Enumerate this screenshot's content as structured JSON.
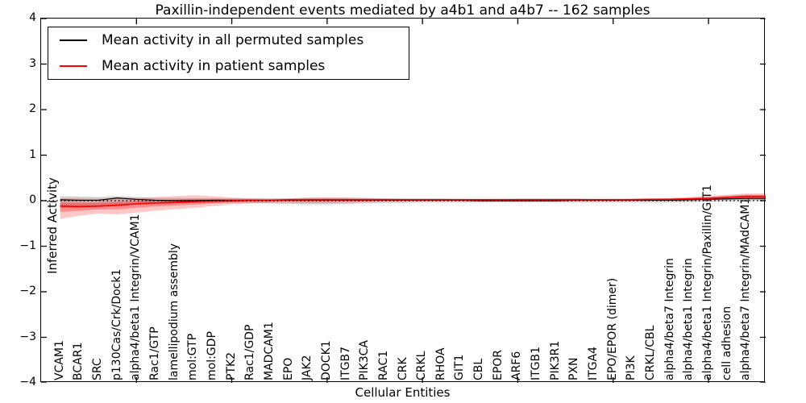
{
  "figure": {
    "title": "Paxillin-independent events mediated by a4b1 and a4b7 -- 162 samples",
    "x_axis_title": "Cellular Entities",
    "y_axis_title": "Inferred Activity",
    "background": "#ffffff"
  },
  "legend": {
    "items": [
      {
        "label": "Mean activity in all permuted samples",
        "color": "#000000"
      },
      {
        "label": "Mean activity in patient samples",
        "color": "#ff0000"
      }
    ]
  },
  "chart_data": {
    "type": "line",
    "title": "Paxillin-independent events mediated by a4b1 and a4b7 -- 162 samples",
    "xlabel": "Cellular Entities",
    "ylabel": "Inferred Activity",
    "ylim": [
      -4,
      4
    ],
    "grid": false,
    "zero_reference_line": {
      "style": "dotted",
      "color": "#000000",
      "y": 0
    },
    "legend_position": "upper left",
    "yticks": [
      {
        "v": 4,
        "label": "4"
      },
      {
        "v": 3,
        "label": "3"
      },
      {
        "v": 2,
        "label": "2"
      },
      {
        "v": 1,
        "label": "1"
      },
      {
        "v": 0,
        "label": "0"
      },
      {
        "v": -1,
        "label": "−1"
      },
      {
        "v": -2,
        "label": "−2"
      },
      {
        "v": -3,
        "label": "−3"
      },
      {
        "v": -4,
        "label": "−4"
      }
    ],
    "categories": [
      "VCAM1",
      "BCAR1",
      "SRC",
      "p130Cas/Crk/Dock1",
      "alpha4/beta1 Integrin/VCAM1",
      "Rac1/GTP",
      "lamellipodium assembly",
      "mol:GTP",
      "mol:GDP",
      "PTK2",
      "Rac1/GDP",
      "MADCAM1",
      "EPO",
      "JAK2",
      "DOCK1",
      "ITGB7",
      "PIK3CA",
      "RAC1",
      "CRK",
      "CRKL",
      "RHOA",
      "GIT1",
      "CBL",
      "EPOR",
      "ARF6",
      "ITGB1",
      "PIK3R1",
      "PXN",
      "ITGA4",
      "EPO/EPOR (dimer)",
      "PI3K",
      "CRKL/CBL",
      "alpha4/beta7 Integrin",
      "alpha4/beta1 Integrin",
      "alpha4/beta1 Integrin/Paxillin/GIT1",
      "cell adhesion",
      "alpha4/beta7 Integrin/MAdCAM1"
    ],
    "series": [
      {
        "name": "Mean activity in all permuted samples",
        "type": "line",
        "color": "#000000",
        "values": [
          0.02,
          0.01,
          0.01,
          0.06,
          0.03,
          0.01,
          0.0,
          0.0,
          0.01,
          0.01,
          0.01,
          0.01,
          0.01,
          0.01,
          0.01,
          0.01,
          0.01,
          0.01,
          0.01,
          0.01,
          0.01,
          0.01,
          0.0,
          0.0,
          0.0,
          0.0,
          0.0,
          0.01,
          0.01,
          0.01,
          0.01,
          0.01,
          0.01,
          0.02,
          0.03,
          0.04,
          0.05
        ]
      },
      {
        "name": "Mean activity in patient samples",
        "type": "line",
        "color": "#ff0000",
        "values": [
          -0.12,
          -0.13,
          -0.12,
          -0.1,
          -0.07,
          -0.05,
          -0.04,
          -0.02,
          -0.01,
          0.0,
          0.01,
          0.01,
          0.02,
          0.02,
          0.02,
          0.02,
          0.02,
          0.02,
          0.02,
          0.02,
          0.02,
          0.02,
          0.02,
          0.02,
          0.02,
          0.02,
          0.02,
          0.02,
          0.02,
          0.02,
          0.02,
          0.03,
          0.03,
          0.04,
          0.05,
          0.07,
          0.09
        ]
      },
      {
        "name": "Permuted samples spread band",
        "type": "band",
        "color": "#999999",
        "opacity": 0.45,
        "hi": [
          0.1,
          0.09,
          0.08,
          0.1,
          0.08,
          0.06,
          0.06,
          0.05,
          0.05,
          0.05,
          0.05,
          0.05,
          0.05,
          0.06,
          0.06,
          0.06,
          0.06,
          0.05,
          0.05,
          0.05,
          0.05,
          0.04,
          0.04,
          0.04,
          0.05,
          0.05,
          0.05,
          0.05,
          0.04,
          0.04,
          0.04,
          0.04,
          0.05,
          0.06,
          0.08,
          0.11,
          0.13
        ],
        "lo": [
          -0.15,
          -0.14,
          -0.12,
          -0.09,
          -0.08,
          -0.07,
          -0.06,
          -0.05,
          -0.05,
          -0.05,
          -0.05,
          -0.06,
          -0.07,
          -0.08,
          -0.08,
          -0.07,
          -0.06,
          -0.05,
          -0.05,
          -0.04,
          -0.04,
          -0.04,
          -0.04,
          -0.04,
          -0.04,
          -0.04,
          -0.04,
          -0.04,
          -0.04,
          -0.04,
          -0.04,
          -0.04,
          -0.04,
          -0.03,
          -0.02,
          -0.01,
          0.0
        ]
      },
      {
        "name": "Patient samples spread band",
        "type": "band",
        "color": "#ff0000",
        "opacity": 0.22,
        "inner_band": true,
        "hi": [
          0.05,
          0.05,
          0.04,
          0.05,
          0.06,
          0.08,
          0.1,
          0.12,
          0.1,
          0.07,
          0.05,
          0.04,
          0.05,
          0.07,
          0.08,
          0.07,
          0.06,
          0.05,
          0.04,
          0.04,
          0.04,
          0.04,
          0.04,
          0.04,
          0.04,
          0.04,
          0.04,
          0.04,
          0.04,
          0.04,
          0.05,
          0.05,
          0.06,
          0.08,
          0.11,
          0.13,
          0.16
        ],
        "lo": [
          -0.4,
          -0.33,
          -0.28,
          -0.3,
          -0.26,
          -0.22,
          -0.19,
          -0.16,
          -0.12,
          -0.08,
          -0.06,
          -0.05,
          -0.04,
          -0.05,
          -0.05,
          -0.04,
          -0.03,
          -0.02,
          -0.02,
          -0.01,
          -0.01,
          -0.01,
          -0.01,
          -0.01,
          -0.01,
          -0.01,
          -0.01,
          -0.01,
          -0.01,
          -0.01,
          0.0,
          0.0,
          0.0,
          0.01,
          0.02,
          0.02,
          0.02
        ]
      }
    ]
  }
}
